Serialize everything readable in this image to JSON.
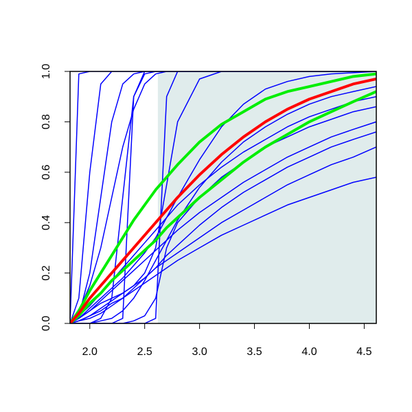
{
  "chart_data": {
    "type": "line",
    "x": [
      1.82,
      1.9,
      2.0,
      2.1,
      2.2,
      2.3,
      2.4,
      2.5,
      2.6,
      2.7,
      2.8,
      3.0,
      3.2,
      3.4,
      3.6,
      3.8,
      4.0,
      4.2,
      4.4,
      4.61
    ],
    "xlim": [
      1.82,
      4.61
    ],
    "xticks": [
      {
        "value": 2,
        "label": "2.0"
      },
      2.5,
      {
        "value": 3,
        "label": "3.0"
      },
      3.5,
      {
        "value": 4,
        "label": "4.0"
      },
      4.5
    ],
    "ylim": [
      0,
      1
    ],
    "yticks": [
      {
        "value": 0,
        "label": "0.0"
      },
      0.2,
      0.4,
      0.6,
      0.8,
      {
        "value": 1,
        "label": "1.0"
      }
    ],
    "shaded_region": {
      "xlim": [
        2.62,
        4.61
      ],
      "color": "#e0ecec"
    },
    "series": [
      {
        "color": "#0000ff",
        "values": [
          0,
          0.99,
          1,
          1,
          1,
          1,
          1,
          1,
          1,
          1,
          1,
          1,
          1,
          1,
          1,
          1,
          1,
          1,
          1,
          1
        ]
      },
      {
        "color": "#0000ff",
        "values": [
          0,
          0.1,
          0.6,
          0.95,
          1,
          1,
          1,
          1,
          1,
          1,
          1,
          1,
          1,
          1,
          1,
          1,
          1,
          1,
          1,
          1
        ]
      },
      {
        "color": "#0000ff",
        "values": [
          0,
          0.03,
          0.2,
          0.5,
          0.8,
          0.95,
          0.99,
          1,
          1,
          1,
          1,
          1,
          1,
          1,
          1,
          1,
          1,
          1,
          1,
          1
        ]
      },
      {
        "color": "#0000ff",
        "values": [
          0,
          0,
          0,
          0,
          0,
          0.02,
          0.9,
          1,
          1,
          1,
          1,
          1,
          1,
          1,
          1,
          1,
          1,
          1,
          1,
          1
        ]
      },
      {
        "color": "#0000ff",
        "values": [
          0,
          0,
          0,
          0,
          0,
          0,
          0,
          0,
          0.02,
          0.9,
          1,
          1,
          1,
          1,
          1,
          1,
          1,
          1,
          1,
          1
        ]
      },
      {
        "color": "#0000ff",
        "values": [
          0,
          0.05,
          0.15,
          0.3,
          0.5,
          0.7,
          0.85,
          0.95,
          0.99,
          1,
          1,
          1,
          1,
          1,
          1,
          1,
          1,
          1,
          1,
          1
        ]
      },
      {
        "color": "#0000ff",
        "values": [
          0,
          0.02,
          0.05,
          0.08,
          0.1,
          0.12,
          0.15,
          0.2,
          0.3,
          0.55,
          0.8,
          0.97,
          1,
          1,
          1,
          1,
          1,
          1,
          1,
          1
        ]
      },
      {
        "color": "#0000ff",
        "values": [
          0,
          0.02,
          0.06,
          0.1,
          0.14,
          0.18,
          0.23,
          0.28,
          0.34,
          0.42,
          0.5,
          0.65,
          0.78,
          0.87,
          0.93,
          0.96,
          0.98,
          0.99,
          0.995,
          1
        ]
      },
      {
        "color": "#0000ff",
        "values": [
          0,
          0.01,
          0.03,
          0.05,
          0.08,
          0.1,
          0.13,
          0.16,
          0.19,
          0.22,
          0.25,
          0.3,
          0.35,
          0.39,
          0.43,
          0.47,
          0.5,
          0.53,
          0.56,
          0.58
        ]
      },
      {
        "color": "#0000ff",
        "values": [
          0,
          0.01,
          0.03,
          0.06,
          0.09,
          0.12,
          0.15,
          0.18,
          0.22,
          0.25,
          0.28,
          0.34,
          0.4,
          0.45,
          0.5,
          0.55,
          0.59,
          0.63,
          0.66,
          0.7
        ]
      },
      {
        "color": "#0000ff",
        "values": [
          0,
          0.02,
          0.05,
          0.09,
          0.13,
          0.17,
          0.21,
          0.25,
          0.29,
          0.33,
          0.37,
          0.44,
          0.5,
          0.56,
          0.61,
          0.66,
          0.7,
          0.74,
          0.77,
          0.8
        ]
      },
      {
        "color": "#0000ff",
        "values": [
          0,
          0.03,
          0.07,
          0.12,
          0.17,
          0.22,
          0.27,
          0.32,
          0.37,
          0.42,
          0.47,
          0.55,
          0.62,
          0.68,
          0.73,
          0.78,
          0.82,
          0.85,
          0.88,
          0.9
        ]
      },
      {
        "color": "#0000ff",
        "values": [
          0,
          0,
          0,
          0,
          0,
          0,
          0.01,
          0.03,
          0.1,
          0.3,
          0.4,
          0.5,
          0.58,
          0.64,
          0.7,
          0.74,
          0.78,
          0.81,
          0.84,
          0.86
        ]
      },
      {
        "color": "#0000ff",
        "values": [
          0,
          0,
          0,
          0.01,
          0.02,
          0.05,
          0.1,
          0.17,
          0.25,
          0.33,
          0.41,
          0.54,
          0.64,
          0.72,
          0.78,
          0.83,
          0.87,
          0.9,
          0.92,
          0.94
        ]
      },
      {
        "color": "#0000ff",
        "values": [
          0,
          0.01,
          0.02,
          0.04,
          0.07,
          0.1,
          0.14,
          0.18,
          0.22,
          0.27,
          0.31,
          0.39,
          0.46,
          0.52,
          0.57,
          0.62,
          0.66,
          0.7,
          0.73,
          0.76
        ]
      },
      {
        "color": "#0000ff",
        "values": [
          0,
          0,
          0,
          0.02,
          0.1,
          0.5,
          0.9,
          0.99,
          1,
          1,
          1,
          1,
          1,
          1,
          1,
          1,
          1,
          1,
          1,
          1
        ]
      },
      {
        "color": "#00ee00",
        "values": [
          0,
          0.05,
          0.13,
          0.2,
          0.27,
          0.34,
          0.41,
          0.47,
          0.53,
          0.58,
          0.63,
          0.72,
          0.79,
          0.84,
          0.89,
          0.92,
          0.94,
          0.96,
          0.98,
          0.99
        ]
      },
      {
        "color": "#00ee00",
        "values": [
          0,
          0.03,
          0.08,
          0.12,
          0.17,
          0.21,
          0.25,
          0.29,
          0.33,
          0.38,
          0.42,
          0.5,
          0.57,
          0.64,
          0.7,
          0.75,
          0.8,
          0.84,
          0.88,
          0.92
        ]
      },
      {
        "color": "#ff0000",
        "values": [
          0,
          0.04,
          0.1,
          0.15,
          0.2,
          0.25,
          0.3,
          0.35,
          0.4,
          0.45,
          0.5,
          0.59,
          0.67,
          0.74,
          0.8,
          0.85,
          0.89,
          0.92,
          0.95,
          0.97
        ]
      }
    ]
  }
}
